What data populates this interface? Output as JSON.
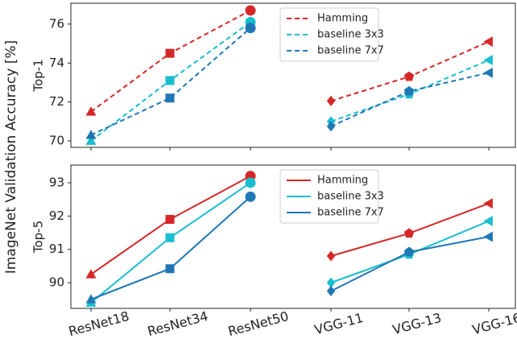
{
  "chart_data": {
    "type": "line",
    "ylabel": "ImageNet Validation Accuracy [%]",
    "category_groups": [
      [
        "ResNet18",
        "ResNet34",
        "ResNet50"
      ],
      [
        "VGG-11",
        "VGG-13",
        "VGG-16"
      ]
    ],
    "group_markers": [
      [
        "^",
        "s",
        "o"
      ],
      [
        "D",
        "p",
        "<"
      ]
    ],
    "panels": [
      {
        "ylabel": "Top-1",
        "line_style": "dashed",
        "ylim": [
          69.67,
          77.07
        ],
        "yticks": [
          70,
          72,
          74,
          76
        ],
        "legend": "upper center",
        "series": [
          {
            "name": "Hamming",
            "color": "#d62728",
            "values": [
              [
                71.5,
                74.5,
                76.7
              ],
              [
                72.05,
                73.3,
                75.1
              ]
            ]
          },
          {
            "name": "baseline 3x3",
            "color": "#17becf",
            "values": [
              [
                70.0,
                73.1,
                76.1
              ],
              [
                71.0,
                72.4,
                74.15
              ]
            ]
          },
          {
            "name": "baseline 7x7",
            "color": "#1f77b4",
            "values": [
              [
                70.3,
                72.2,
                75.8
              ],
              [
                70.75,
                72.55,
                73.5
              ]
            ]
          }
        ]
      },
      {
        "ylabel": "Top-5",
        "line_style": "solid",
        "ylim": [
          89.23,
          93.53
        ],
        "yticks": [
          90,
          91,
          92,
          93
        ],
        "legend": "upper center",
        "series": [
          {
            "name": "Hamming",
            "color": "#d62728",
            "values": [
              [
                90.25,
                91.9,
                93.2
              ],
              [
                90.8,
                91.48,
                92.38
              ]
            ]
          },
          {
            "name": "baseline 3x3",
            "color": "#17becf",
            "values": [
              [
                89.4,
                91.35,
                93.0
              ],
              [
                90.0,
                90.85,
                91.85
              ]
            ]
          },
          {
            "name": "baseline 7x7",
            "color": "#1f77b4",
            "values": [
              [
                89.5,
                90.42,
                92.58
              ],
              [
                89.75,
                90.92,
                91.38
              ]
            ]
          }
        ]
      }
    ]
  }
}
